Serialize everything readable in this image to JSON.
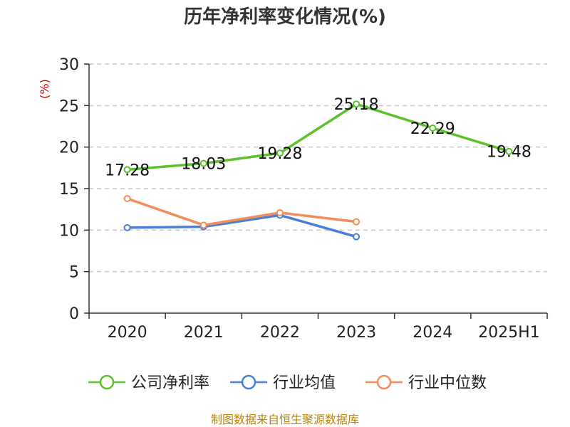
{
  "chart_data": {
    "type": "line",
    "title": "历年净利率变化情况(%)",
    "ylabel": "(%)",
    "xlabel": "",
    "categories": [
      "2020",
      "2021",
      "2022",
      "2023",
      "2024",
      "2025H1"
    ],
    "ylim": [
      0,
      30
    ],
    "yticks": [
      0,
      5,
      10,
      15,
      20,
      25,
      30
    ],
    "grid": true,
    "legend_position": "bottom",
    "series": [
      {
        "name": "公司净利率",
        "color": "#5cc12a",
        "values": [
          17.28,
          18.03,
          19.28,
          25.18,
          22.29,
          19.48
        ],
        "labels": [
          "17.28",
          "18.03",
          "19.28",
          "25.18",
          "22.29",
          "19.48"
        ]
      },
      {
        "name": "行业均值",
        "color": "#4a7fd9",
        "values": [
          10.3,
          10.4,
          11.8,
          9.2,
          null,
          null
        ]
      },
      {
        "name": "行业中位数",
        "color": "#f28e5c",
        "values": [
          13.8,
          10.6,
          12.1,
          11.0,
          null,
          null
        ]
      }
    ]
  },
  "source": "制图数据来自恒生聚源数据库"
}
